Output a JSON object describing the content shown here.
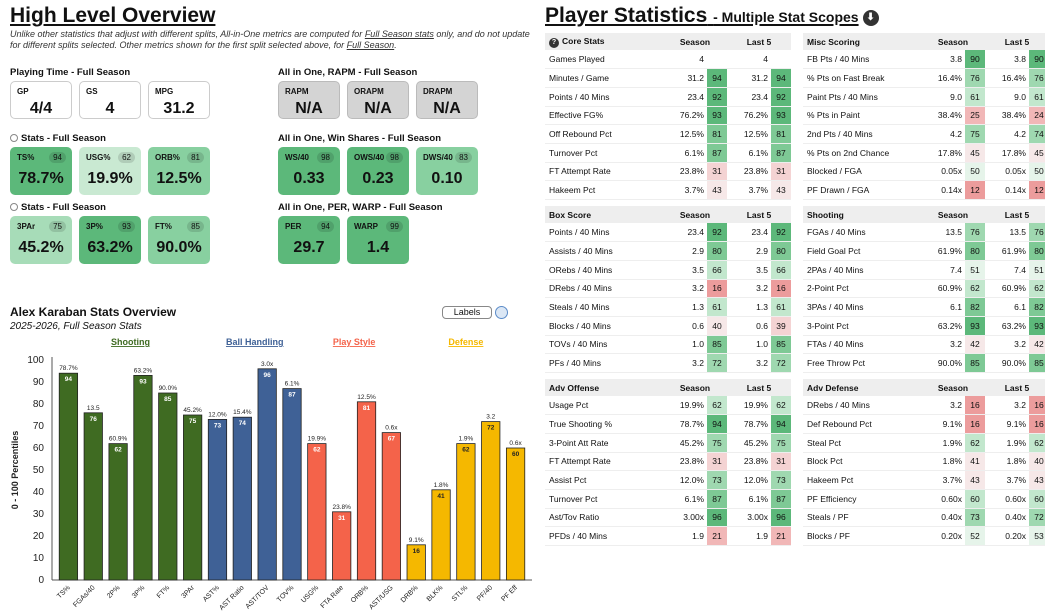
{
  "overview": {
    "title": "High Level Overview",
    "note_pre": "Unlike other statistics that adjust with different splits, All-in-One metrics are computed for ",
    "note_link1": "Full Season stats",
    "note_mid": " only, and do not update for different splits selected. Other metrics shown for the first split selected above, for ",
    "note_link2": "Full Season",
    "note_end": "."
  },
  "playing_time": {
    "title": "Playing Time - Full Season",
    "cards": [
      {
        "label": "GP",
        "value": "4/4"
      },
      {
        "label": "GS",
        "value": "4"
      },
      {
        "label": "MPG",
        "value": "31.2"
      }
    ]
  },
  "rapm": {
    "title": "All in One, RAPM - Full Season",
    "cards": [
      {
        "label": "RAPM",
        "value": "N/A"
      },
      {
        "label": "ORAPM",
        "value": "N/A"
      },
      {
        "label": "DRAPM",
        "value": "N/A"
      }
    ]
  },
  "stats1": {
    "title": "Stats - Full Season",
    "cards": [
      {
        "label": "TS%",
        "pct": "94",
        "value": "78.7%",
        "color": "#5cb87a"
      },
      {
        "label": "USG%",
        "pct": "62",
        "value": "19.9%",
        "color": "#c9e9d2"
      },
      {
        "label": "ORB%",
        "pct": "81",
        "value": "12.5%",
        "color": "#88d0a0"
      }
    ]
  },
  "winshares": {
    "title": "All in One, Win Shares - Full Season",
    "cards": [
      {
        "label": "WS/40",
        "pct": "98",
        "value": "0.33",
        "color": "#5cb87a"
      },
      {
        "label": "OWS/40",
        "pct": "98",
        "value": "0.23",
        "color": "#5cb87a"
      },
      {
        "label": "DWS/40",
        "pct": "83",
        "value": "0.10",
        "color": "#88d0a0"
      }
    ]
  },
  "stats2": {
    "title": "Stats - Full Season",
    "cards": [
      {
        "label": "3PAr",
        "pct": "75",
        "value": "45.2%",
        "color": "#a7dcb8"
      },
      {
        "label": "3P%",
        "pct": "93",
        "value": "63.2%",
        "color": "#5cb87a"
      },
      {
        "label": "FT%",
        "pct": "85",
        "value": "90.0%",
        "color": "#88d0a0"
      }
    ]
  },
  "perwarp": {
    "title": "All in One, PER, WARP - Full Season",
    "cards": [
      {
        "label": "PER",
        "pct": "94",
        "value": "29.7",
        "color": "#5cb87a"
      },
      {
        "label": "WARP",
        "pct": "99",
        "value": "1.4",
        "color": "#5cb87a"
      }
    ]
  },
  "chart_header": {
    "title": "Alex Karaban Stats Overview",
    "subtitle": "2025-2026, Full Season Stats",
    "labels_button": "Labels"
  },
  "chart_data": {
    "type": "bar",
    "title": "Alex Karaban Stats Overview",
    "subtitle": "2025-2026, Full Season Stats",
    "ylabel": "0 - 100 Percentiles",
    "ylim": [
      0,
      100
    ],
    "yticks": [
      0,
      10,
      20,
      30,
      40,
      50,
      60,
      70,
      80,
      90,
      100
    ],
    "groups": [
      {
        "name": "Shooting",
        "color": "#3f6b22"
      },
      {
        "name": "Ball Handling",
        "color": "#3f6196"
      },
      {
        "name": "Play Style",
        "color": "#f4634a"
      },
      {
        "name": "Defense",
        "color": "#f5b800"
      }
    ],
    "bars": [
      {
        "cat": "TS%",
        "pct": 94,
        "raw": "78.7%",
        "group": 0
      },
      {
        "cat": "FGAs/40",
        "pct": 76,
        "raw": "13.5",
        "group": 0
      },
      {
        "cat": "2P%",
        "pct": 62,
        "raw": "60.9%",
        "group": 0
      },
      {
        "cat": "3P%",
        "pct": 93,
        "raw": "63.2%",
        "group": 0
      },
      {
        "cat": "FT%",
        "pct": 85,
        "raw": "90.0%",
        "group": 0
      },
      {
        "cat": "3PAr",
        "pct": 75,
        "raw": "45.2%",
        "group": 0
      },
      {
        "cat": "AST%",
        "pct": 73,
        "raw": "12.0%",
        "group": 1
      },
      {
        "cat": "AST Ratio",
        "pct": 74,
        "raw": "15.4%",
        "group": 1
      },
      {
        "cat": "AST/TOV",
        "pct": 96,
        "raw": "3.0x",
        "group": 1
      },
      {
        "cat": "TOV%",
        "pct": 87,
        "raw": "6.1%",
        "group": 1
      },
      {
        "cat": "USG%",
        "pct": 62,
        "raw": "19.9%",
        "group": 2
      },
      {
        "cat": "FTA Rate",
        "pct": 31,
        "raw": "23.8%",
        "group": 2
      },
      {
        "cat": "ORB%",
        "pct": 81,
        "raw": "12.5%",
        "group": 2
      },
      {
        "cat": "AST/USG",
        "pct": 67,
        "raw": "0.6x",
        "group": 2
      },
      {
        "cat": "DRB%",
        "pct": 16,
        "raw": "9.1%",
        "group": 3
      },
      {
        "cat": "BLK%",
        "pct": 41,
        "raw": "1.8%",
        "group": 3
      },
      {
        "cat": "STL%",
        "pct": 62,
        "raw": "1.9%",
        "group": 3
      },
      {
        "cat": "PF/40",
        "pct": 72,
        "raw": "3.2",
        "group": 3
      },
      {
        "cat": "PF Eff",
        "pct": 60,
        "raw": "0.6x",
        "group": 3
      }
    ]
  },
  "player_stats": {
    "title": "Player Statistics",
    "subtitle": "- Multiple Stat Scopes",
    "download_icon": "download-icon"
  },
  "tables": {
    "core": {
      "title": "Core Stats",
      "col1": "Season",
      "col2": "Last 5",
      "rows": [
        [
          "Games Played",
          "4",
          "",
          "4",
          ""
        ],
        [
          "Minutes / Game",
          "31.2",
          "94",
          "31.2",
          "94"
        ],
        [
          "Points / 40 Mins",
          "23.4",
          "92",
          "23.4",
          "92"
        ],
        [
          "Effective FG%",
          "76.2%",
          "93",
          "76.2%",
          "93"
        ],
        [
          "Off Rebound Pct",
          "12.5%",
          "81",
          "12.5%",
          "81"
        ],
        [
          "Turnover Pct",
          "6.1%",
          "87",
          "6.1%",
          "87"
        ],
        [
          "FT Attempt Rate",
          "23.8%",
          "31",
          "23.8%",
          "31"
        ],
        [
          "Hakeem Pct",
          "3.7%",
          "43",
          "3.7%",
          "43"
        ]
      ]
    },
    "misc": {
      "title": "Misc Scoring",
      "col1": "Season",
      "col2": "Last 5",
      "rows": [
        [
          "FB Pts / 40 Mins",
          "3.8",
          "90",
          "3.8",
          "90"
        ],
        [
          "% Pts on Fast Break",
          "16.4%",
          "76",
          "16.4%",
          "76"
        ],
        [
          "Paint Pts / 40 Mins",
          "9.0",
          "61",
          "9.0",
          "61"
        ],
        [
          "% Pts in Paint",
          "38.4%",
          "25",
          "38.4%",
          "24"
        ],
        [
          "2nd Pts / 40 Mins",
          "4.2",
          "75",
          "4.2",
          "74"
        ],
        [
          "% Pts on 2nd Chance",
          "17.8%",
          "45",
          "17.8%",
          "45"
        ],
        [
          "Blocked / FGA",
          "0.05x",
          "50",
          "0.05x",
          "50"
        ],
        [
          "PF Drawn / FGA",
          "0.14x",
          "12",
          "0.14x",
          "12"
        ]
      ]
    },
    "box": {
      "title": "Box Score",
      "col1": "Season",
      "col2": "Last 5",
      "rows": [
        [
          "Points / 40 Mins",
          "23.4",
          "92",
          "23.4",
          "92"
        ],
        [
          "Assists / 40 Mins",
          "2.9",
          "80",
          "2.9",
          "80"
        ],
        [
          "ORebs / 40 Mins",
          "3.5",
          "66",
          "3.5",
          "66"
        ],
        [
          "DRebs / 40 Mins",
          "3.2",
          "16",
          "3.2",
          "16"
        ],
        [
          "Steals / 40 Mins",
          "1.3",
          "61",
          "1.3",
          "61"
        ],
        [
          "Blocks / 40 Mins",
          "0.6",
          "40",
          "0.6",
          "39"
        ],
        [
          "TOVs / 40 Mins",
          "1.0",
          "85",
          "1.0",
          "85"
        ],
        [
          "PFs / 40 Mins",
          "3.2",
          "72",
          "3.2",
          "72"
        ]
      ]
    },
    "shooting": {
      "title": "Shooting",
      "col1": "Season",
      "col2": "Last 5",
      "rows": [
        [
          "FGAs / 40 Mins",
          "13.5",
          "76",
          "13.5",
          "76"
        ],
        [
          "Field Goal Pct",
          "61.9%",
          "80",
          "61.9%",
          "80"
        ],
        [
          "2PAs / 40 Mins",
          "7.4",
          "51",
          "7.4",
          "51"
        ],
        [
          "2-Point Pct",
          "60.9%",
          "62",
          "60.9%",
          "62"
        ],
        [
          "3PAs / 40 Mins",
          "6.1",
          "82",
          "6.1",
          "82"
        ],
        [
          "3-Point Pct",
          "63.2%",
          "93",
          "63.2%",
          "93"
        ],
        [
          "FTAs / 40 Mins",
          "3.2",
          "42",
          "3.2",
          "42"
        ],
        [
          "Free Throw Pct",
          "90.0%",
          "85",
          "90.0%",
          "85"
        ]
      ]
    },
    "advoff": {
      "title": "Adv Offense",
      "col1": "Season",
      "col2": "Last 5",
      "rows": [
        [
          "Usage Pct",
          "19.9%",
          "62",
          "19.9%",
          "62"
        ],
        [
          "True Shooting %",
          "78.7%",
          "94",
          "78.7%",
          "94"
        ],
        [
          "3-Point Att Rate",
          "45.2%",
          "75",
          "45.2%",
          "75"
        ],
        [
          "FT Attempt Rate",
          "23.8%",
          "31",
          "23.8%",
          "31"
        ],
        [
          "Assist Pct",
          "12.0%",
          "73",
          "12.0%",
          "73"
        ],
        [
          "Turnover Pct",
          "6.1%",
          "87",
          "6.1%",
          "87"
        ],
        [
          "Ast/Tov Ratio",
          "3.00x",
          "96",
          "3.00x",
          "96"
        ],
        [
          "PFDs / 40 Mins",
          "1.9",
          "21",
          "1.9",
          "21"
        ]
      ]
    },
    "advdef": {
      "title": "Adv Defense",
      "col1": "Season",
      "col2": "Last 5",
      "rows": [
        [
          "DRebs / 40 Mins",
          "3.2",
          "16",
          "3.2",
          "16"
        ],
        [
          "Def Rebound Pct",
          "9.1%",
          "16",
          "9.1%",
          "16"
        ],
        [
          "Steal Pct",
          "1.9%",
          "62",
          "1.9%",
          "62"
        ],
        [
          "Block Pct",
          "1.8%",
          "41",
          "1.8%",
          "40"
        ],
        [
          "Hakeem Pct",
          "3.7%",
          "43",
          "3.7%",
          "43"
        ],
        [
          "PF Efficiency",
          "0.60x",
          "60",
          "0.60x",
          "60"
        ],
        [
          "Steals / PF",
          "0.40x",
          "73",
          "0.40x",
          "72"
        ],
        [
          "Blocks / PF",
          "0.20x",
          "52",
          "0.20x",
          "53"
        ]
      ]
    }
  }
}
